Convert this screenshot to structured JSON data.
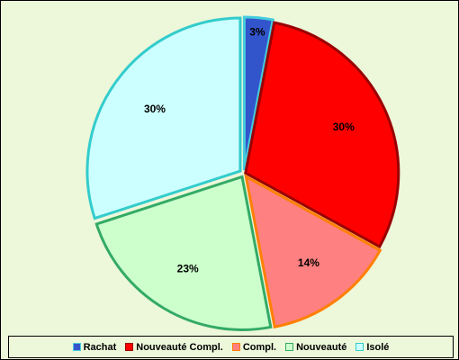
{
  "chart_data": {
    "type": "pie",
    "series": [
      {
        "name": "Rachat",
        "value": 3,
        "label": "3%",
        "fill": "#3355cc",
        "stroke": "#44ccdd"
      },
      {
        "name": "Nouveauté Compl.",
        "value": 30,
        "label": "30%",
        "fill": "#ff0000",
        "stroke": "#990000"
      },
      {
        "name": "Compl.",
        "value": 14,
        "label": "14%",
        "fill": "#ff8080",
        "stroke": "#ff8000"
      },
      {
        "name": "Nouveauté",
        "value": 23,
        "label": "23%",
        "fill": "#ccffcc",
        "stroke": "#33aa66"
      },
      {
        "name": "Isolé",
        "value": 30,
        "label": "30%",
        "fill": "#ccffff",
        "stroke": "#33cccc"
      }
    ],
    "legend": {
      "position": "bottom"
    },
    "start_angle": "top, clockwise"
  }
}
